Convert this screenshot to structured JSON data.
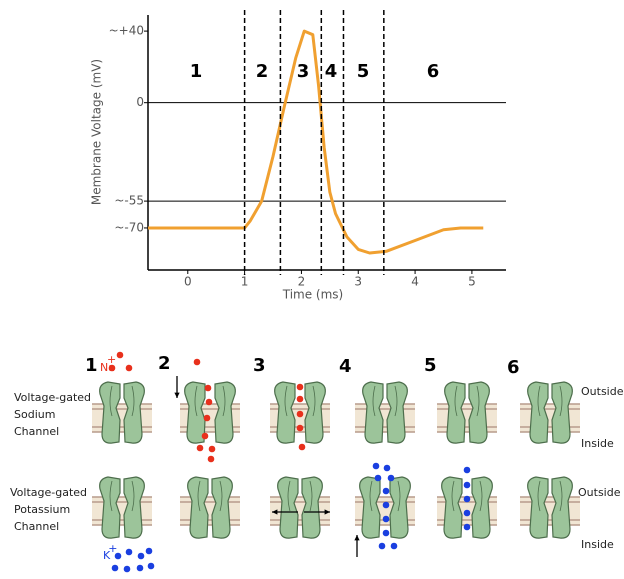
{
  "chart_data": {
    "type": "line",
    "y_label": "Membrane Voltage (mV)",
    "x_label": "Time (ms)",
    "x": [
      -0.7,
      0,
      0.5,
      1.0,
      1.1,
      1.3,
      1.5,
      1.7,
      1.9,
      2.05,
      2.2,
      2.3,
      2.4,
      2.5,
      2.6,
      2.8,
      3.0,
      3.2,
      3.5,
      4.0,
      4.5,
      4.8,
      5.2
    ],
    "values": [
      -70,
      -70,
      -70,
      -70,
      -66,
      -55,
      -30,
      -2,
      25,
      40,
      38,
      10,
      -25,
      -50,
      -62,
      -75,
      -82,
      -84,
      -83,
      -77,
      -71,
      -70,
      -70
    ],
    "color": "#f0a030",
    "xlim": [
      -0.7,
      5.6
    ],
    "ylim": [
      -93.5,
      49
    ],
    "xticks": [
      0,
      1,
      2,
      3,
      4,
      5
    ],
    "yticks": [
      {
        "value": 40,
        "label": "~+40"
      },
      0,
      {
        "value": -55,
        "label": "~-55"
      },
      {
        "value": -70,
        "label": "~-70"
      }
    ],
    "hlines": [
      0,
      -55
    ],
    "vlines": [
      1.0,
      1.63,
      2.35,
      2.74,
      3.45
    ],
    "phase_labels": [
      "1",
      "2",
      "3",
      "4",
      "5",
      "6"
    ]
  },
  "diagram": {
    "steps": [
      "1",
      "2",
      "3",
      "4",
      "5",
      "6"
    ],
    "sodium": {
      "symbol": "Na",
      "charge": "+",
      "label": [
        "Voltage-gated",
        "Sodium",
        "Channel"
      ]
    },
    "potassium": {
      "symbol": "K",
      "charge": "+",
      "label": [
        "Voltage-gated",
        "Potassium",
        "Channel"
      ]
    },
    "outside": "Outside",
    "inside": "Inside"
  }
}
